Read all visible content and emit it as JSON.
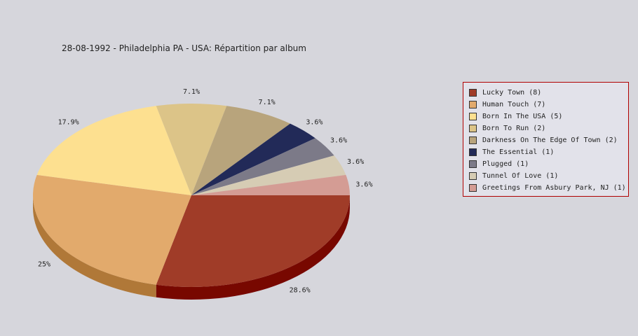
{
  "chart_data": {
    "type": "pie",
    "title": "28-08-1992 - Philadelphia PA - USA:  Répartition par album",
    "legend_position": "right",
    "slices": [
      {
        "label": "Lucky Town (8)",
        "value": 8,
        "percent_label": "28.6%",
        "color": "#a03c28",
        "side_color": "#780800"
      },
      {
        "label": "Human Touch (7)",
        "value": 7,
        "percent_label": "25%",
        "color": "#e2aa6c",
        "side_color": "#b07838"
      },
      {
        "label": "Born In The USA (5)",
        "value": 5,
        "percent_label": "17.9%",
        "color": "#fde090",
        "side_color": "#c8a850"
      },
      {
        "label": "Born To Run (2)",
        "value": 2,
        "percent_label": "7.1%",
        "color": "#dcc488",
        "side_color": "#a89050"
      },
      {
        "label": "Darkness On The Edge Of Town (2)",
        "value": 2,
        "percent_label": "7.1%",
        "color": "#b8a47c",
        "side_color": "#887450"
      },
      {
        "label": "The Essential (1)",
        "value": 1,
        "percent_label": "3.6%",
        "color": "#222a58",
        "side_color": "#101838"
      },
      {
        "label": "Plugged (1)",
        "value": 1,
        "percent_label": "3.6%",
        "color": "#7c7a88",
        "side_color": "#50505c"
      },
      {
        "label": "Tunnel Of Love (1)",
        "value": 1,
        "percent_label": "3.6%",
        "color": "#d6ccb4",
        "side_color": "#a89c84"
      },
      {
        "label": "Greetings From Asbury Park, NJ (1)",
        "value": 1,
        "percent_label": "3.6%",
        "color": "#d49c94",
        "side_color": "#a06860"
      }
    ]
  }
}
